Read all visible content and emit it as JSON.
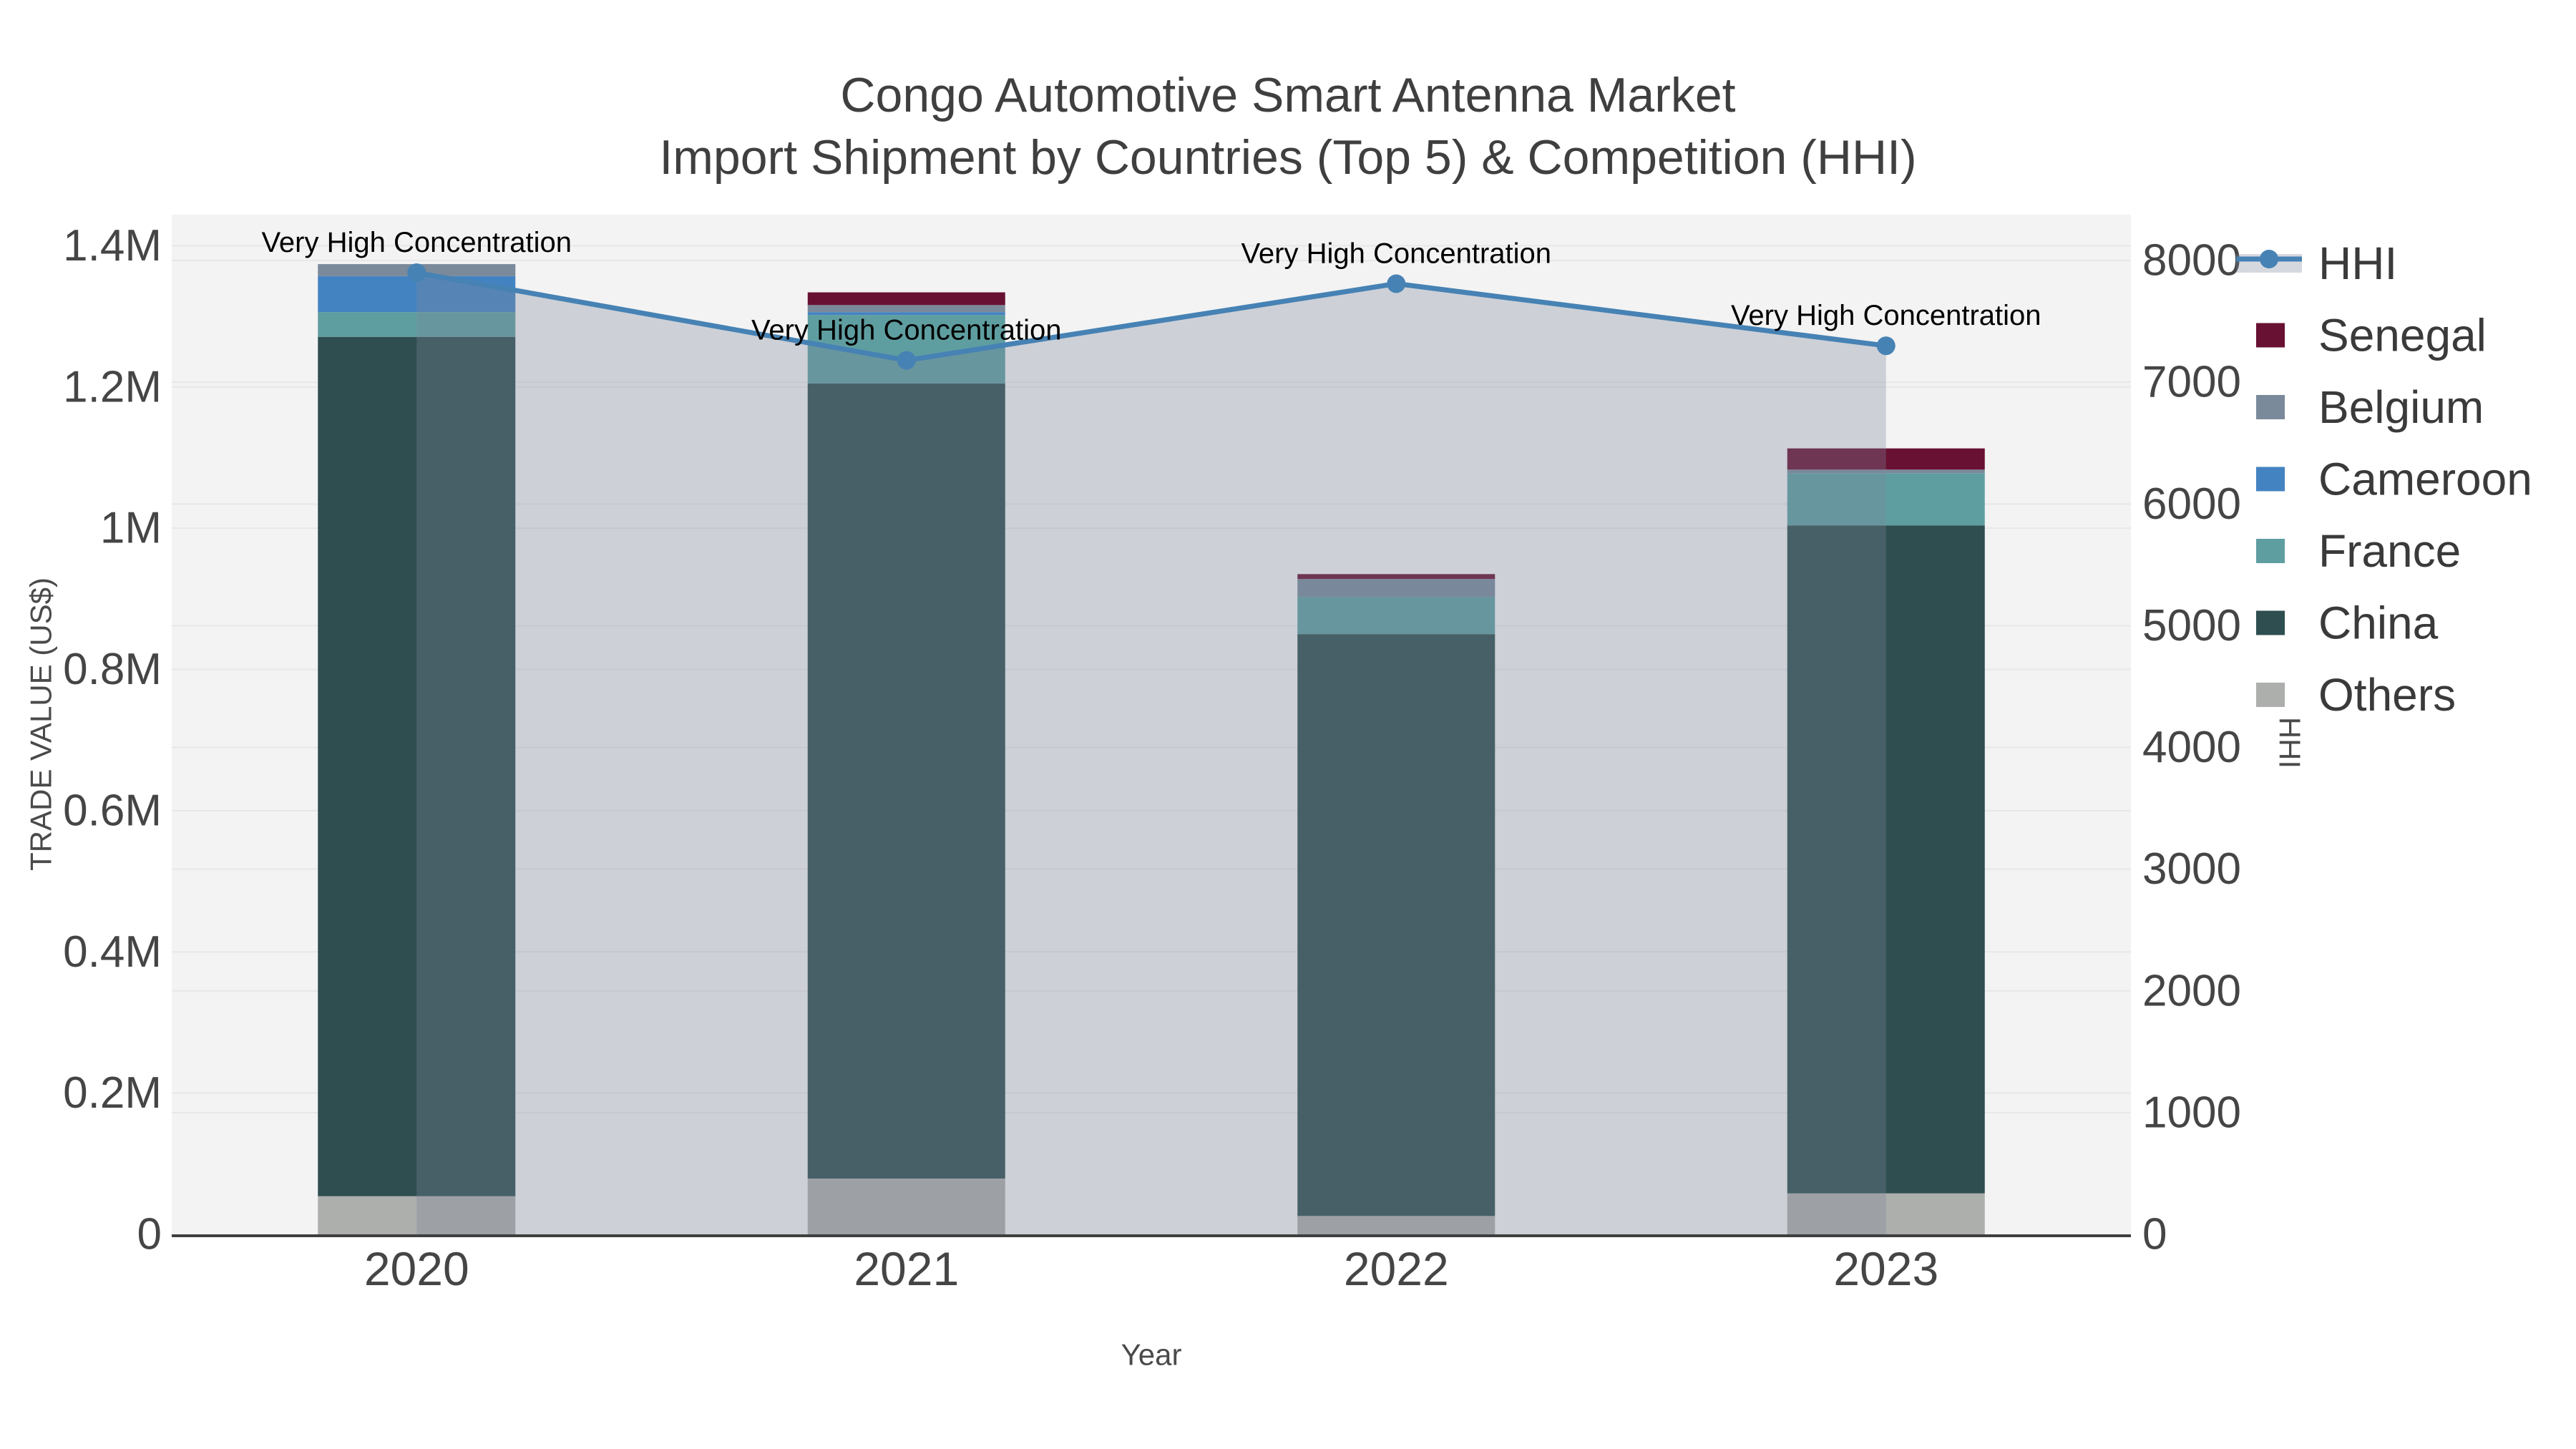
{
  "chart_data": {
    "type": "bar+line",
    "title": "Congo Automotive Smart Antenna Market",
    "subtitle": "Import Shipment by Countries (Top 5) & Competition (HHI)",
    "xlabel": "Year",
    "ylabel_left": "TRADE VALUE (US$)",
    "ylabel_right": "HHI",
    "categories": [
      "2020",
      "2021",
      "2022",
      "2023"
    ],
    "stack_series": [
      {
        "name": "Others",
        "color": "#ADAFAC",
        "values": [
          54000,
          79000,
          26000,
          58000
        ]
      },
      {
        "name": "China",
        "color": "#2E4E4F",
        "values": [
          1217000,
          1126000,
          824000,
          946000
        ]
      },
      {
        "name": "France",
        "color": "#5F9EA0",
        "values": [
          35000,
          97000,
          53000,
          74000
        ]
      },
      {
        "name": "Cameroon",
        "color": "#4483C1",
        "values": [
          51000,
          4000,
          0,
          0
        ]
      },
      {
        "name": "Belgium",
        "color": "#7A8A9B",
        "values": [
          17000,
          10000,
          25000,
          5000
        ]
      },
      {
        "name": "Senegal",
        "color": "#681132",
        "values": [
          0,
          18000,
          7000,
          30000
        ]
      }
    ],
    "bar_totals": [
      1374000,
      1334000,
      935000,
      1113000
    ],
    "line_series": {
      "name": "HHI",
      "color": "#4682B4",
      "fill": "rgba(125,135,155,0.32)",
      "values": [
        7900,
        7180,
        7810,
        7300
      ]
    },
    "annotations": [
      {
        "text": "Very High Concentration"
      },
      {
        "text": "Very High Concentration"
      },
      {
        "text": "Very High Concentration"
      },
      {
        "text": "Very High Concentration"
      }
    ],
    "left_axis": {
      "range": [
        0,
        1444000
      ],
      "ticks": [
        0,
        200000,
        400000,
        600000,
        800000,
        1000000,
        1200000,
        1400000
      ],
      "tick_labels": [
        "0",
        "0.2M",
        "0.4M",
        "0.6M",
        "0.8M",
        "1M",
        "1.2M",
        "1.4M"
      ]
    },
    "right_axis": {
      "range": [
        0,
        8377
      ],
      "ticks": [
        0,
        1000,
        2000,
        3000,
        4000,
        5000,
        6000,
        7000,
        8000
      ],
      "tick_labels": [
        "0",
        "1000",
        "2000",
        "3000",
        "4000",
        "5000",
        "6000",
        "7000",
        "8000"
      ]
    },
    "legend_order": [
      "HHI",
      "Senegal",
      "Belgium",
      "Cameroon",
      "France",
      "China",
      "Others"
    ],
    "legend_position": "right",
    "grid": true,
    "colors": {
      "plot_background": "#F3F3F3",
      "gridline": "#E7E7E9",
      "axis_line": "#3F3F3F",
      "tick_text": "#454545",
      "title_text": "#3F3F3F",
      "axis_title_text": "#4A4A4A",
      "legend_text": "#3A3A3A",
      "annotation_text": "#000000"
    }
  }
}
